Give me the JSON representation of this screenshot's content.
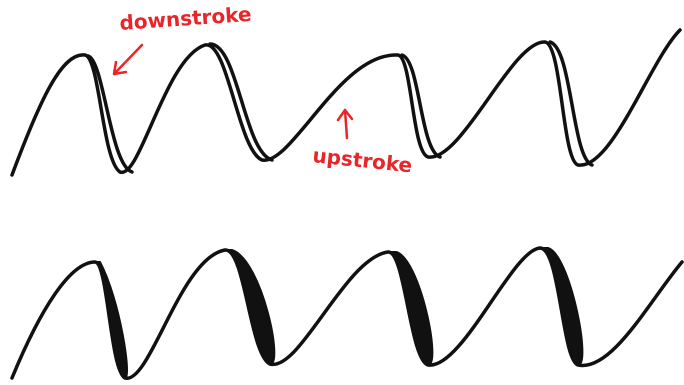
{
  "annotations": [
    {
      "label": "downstroke"
    },
    {
      "label": "upstroke"
    }
  ]
}
